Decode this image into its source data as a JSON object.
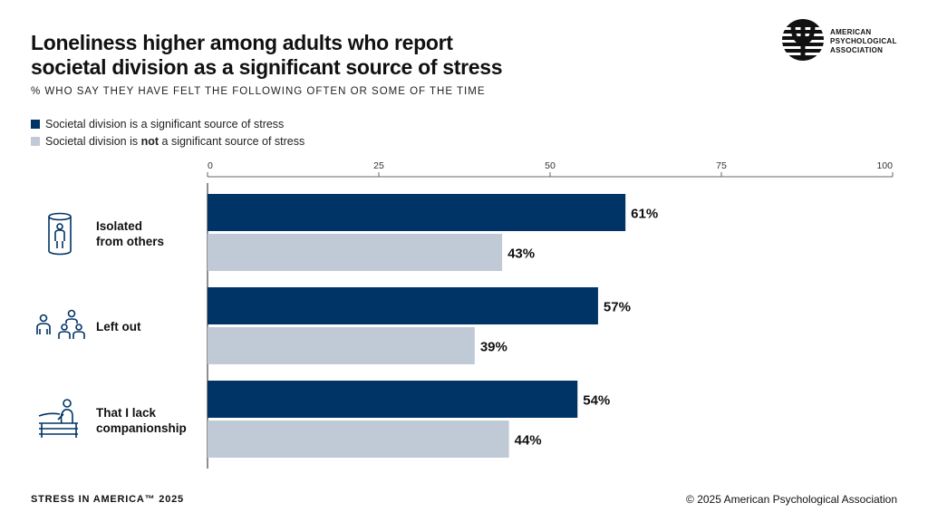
{
  "header": {
    "title_line1": "Loneliness higher among adults who report",
    "title_line2": "societal division as a significant source of stress",
    "subtitle": "% WHO SAY THEY HAVE FELT THE FOLLOWING OFTEN OR SOME OF THE TIME"
  },
  "legend": {
    "items": [
      {
        "pre": "Societal division is a significant source of stress",
        "bold": "",
        "post": ""
      },
      {
        "pre": "Societal division is ",
        "bold": "not",
        "post": " a significant source of stress"
      }
    ]
  },
  "logo": {
    "line1": "AMERICAN",
    "line2": "PSYCHOLOGICAL",
    "line3": "ASSOCIATION"
  },
  "categories": [
    {
      "line1": "Isolated",
      "line2": "from others",
      "icon": "isolated-person-icon"
    },
    {
      "line1": "Left out",
      "line2": "",
      "icon": "left-out-people-icon"
    },
    {
      "line1": "That I lack",
      "line2": "companionship",
      "icon": "person-on-bench-icon"
    }
  ],
  "chart_data": {
    "type": "bar",
    "orientation": "horizontal",
    "categories": [
      "Isolated from others",
      "Left out",
      "That I lack companionship"
    ],
    "series": [
      {
        "values": [
          61,
          57,
          54
        ],
        "color": "#003366"
      },
      {
        "values": [
          43,
          39,
          44
        ],
        "color": "#c0cad7"
      }
    ],
    "value_suffix": "%",
    "xlim": [
      0,
      100
    ],
    "ticks": [
      0,
      25,
      50,
      75,
      100
    ],
    "grid": false,
    "legend_position": "top-left"
  },
  "footer": {
    "left": "STRESS IN AMERICA™ 2025",
    "right": "© 2025 American Psychological Association"
  }
}
